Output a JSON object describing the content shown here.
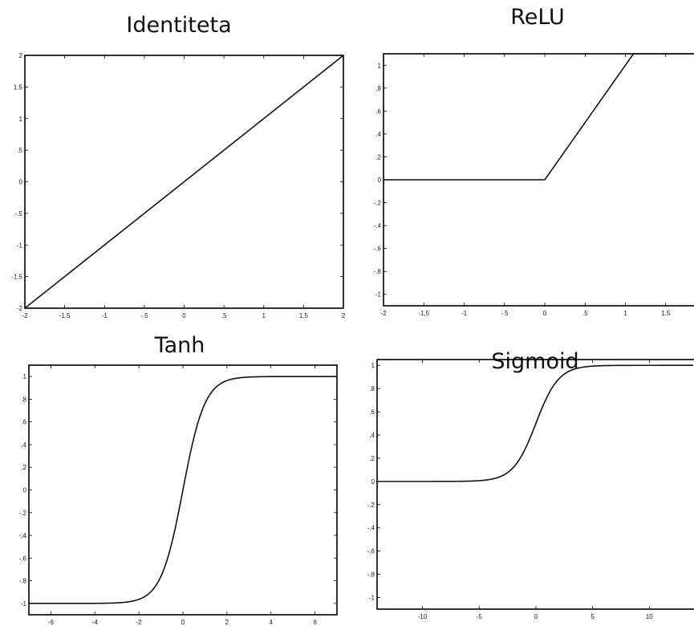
{
  "chart_data": [
    {
      "type": "line",
      "title": "Identiteta",
      "function": "identity",
      "xlim": [
        -2,
        2
      ],
      "ylim": [
        -2,
        2
      ],
      "xticks": [
        -2,
        -1.5,
        -1,
        -0.5,
        0,
        0.5,
        1,
        1.5,
        2
      ],
      "yticks": [
        -2,
        -1.5,
        -1,
        -0.5,
        0,
        0.5,
        1,
        1.5,
        2
      ],
      "x": [
        -2,
        2
      ],
      "y": [
        -2,
        2
      ],
      "grid": false
    },
    {
      "type": "line",
      "title": "ReLU",
      "function": "relu",
      "xlim": [
        -2,
        2
      ],
      "ylim": [
        -1.1,
        1.1
      ],
      "xticks": [
        -2,
        -1.5,
        -1,
        -0.5,
        0,
        0.5,
        1,
        1.5
      ],
      "yticks": [
        -1,
        -0.8,
        -0.6,
        -0.4,
        -0.2,
        0,
        0.2,
        0.4,
        0.6,
        0.8,
        1
      ],
      "x": [
        -2,
        0,
        1.1
      ],
      "y": [
        0,
        0,
        1.1
      ],
      "grid": false
    },
    {
      "type": "line",
      "title": "Tanh",
      "function": "tanh",
      "xlim": [
        -7,
        7
      ],
      "ylim": [
        -1.1,
        1.1
      ],
      "xticks": [
        -6,
        -4,
        -2,
        0,
        2,
        4,
        6
      ],
      "yticks": [
        -1,
        -0.8,
        -0.6,
        -0.4,
        -0.2,
        0,
        0.2,
        0.4,
        0.6,
        0.8,
        1
      ],
      "x": [
        -7,
        -2,
        -1,
        0,
        1,
        2,
        7
      ],
      "y": [
        -1,
        -0.964,
        -0.762,
        0,
        0.762,
        0.964,
        1
      ],
      "grid": false
    },
    {
      "type": "line",
      "title": "Sigmoid",
      "function": "sigmoid",
      "xlim": [
        -14,
        15
      ],
      "ylim": [
        -1.1,
        1.05
      ],
      "xticks": [
        -10,
        -5,
        0,
        5,
        10
      ],
      "yticks": [
        -1,
        -0.8,
        -0.6,
        -0.4,
        -0.2,
        0,
        0.2,
        0.4,
        0.6,
        0.8,
        1
      ],
      "x": [
        -14,
        -5,
        -2,
        0,
        2,
        5,
        15
      ],
      "y": [
        0,
        0.007,
        0.119,
        0.5,
        0.881,
        0.993,
        1
      ],
      "grid": false
    }
  ]
}
